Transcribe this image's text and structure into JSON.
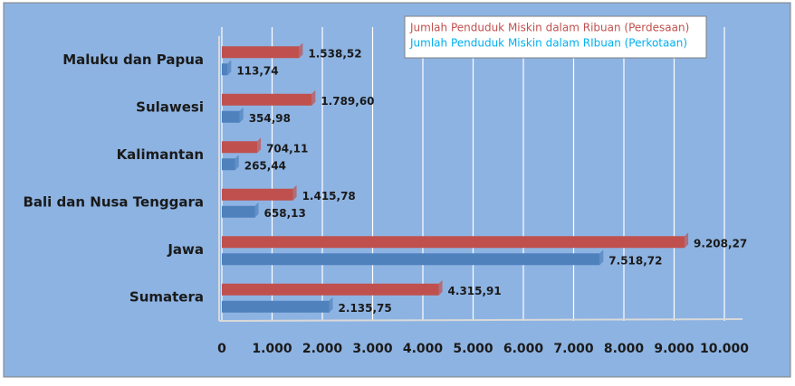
{
  "chart_data": {
    "type": "bar",
    "orientation": "horizontal",
    "categories": [
      "Maluku dan Papua",
      "Sulawesi",
      "Kalimantan",
      "Bali dan Nusa Tenggara",
      "Jawa",
      "Sumatera"
    ],
    "series": [
      {
        "name": "Jumlah Penduduk Miskin dalam Ribuan (Perdesaan)",
        "color": "#c0504d",
        "values": [
          1538.52,
          1789.6,
          704.11,
          1415.78,
          9208.27,
          4315.91
        ],
        "value_labels": [
          "1.538,52",
          "1.789,60",
          "704,11",
          "1.415,78",
          "9.208,27",
          "4.315,91"
        ]
      },
      {
        "name": "Jumlah Penduduk Miskin dalam RIbuan (Perkotaan)",
        "color": "#4f81bd",
        "legend_text_color": "#00b0f0",
        "values": [
          113.74,
          354.98,
          265.44,
          658.13,
          7518.72,
          2135.75
        ],
        "value_labels": [
          "113,74",
          "354,98",
          "265,44",
          "658,13",
          "7.518,72",
          "2.135,75"
        ]
      }
    ],
    "xlim": [
      0,
      10000
    ],
    "xticks": [
      0,
      {
        "value": 1000,
        "label": "1.000"
      },
      {
        "value": 2000,
        "label": "2.000"
      },
      {
        "value": 3000,
        "label": "3.000"
      },
      {
        "value": 4000,
        "label": "4.000"
      },
      {
        "value": 5000,
        "label": "5.000"
      },
      {
        "value": 6000,
        "label": "6.000"
      },
      {
        "value": 7000,
        "label": "7.000"
      },
      {
        "value": 8000,
        "label": "8.000"
      },
      {
        "value": 9000,
        "label": "9.000"
      },
      {
        "value": 10000,
        "label": "10.000"
      }
    ],
    "grid": true,
    "legend": "top-right"
  }
}
